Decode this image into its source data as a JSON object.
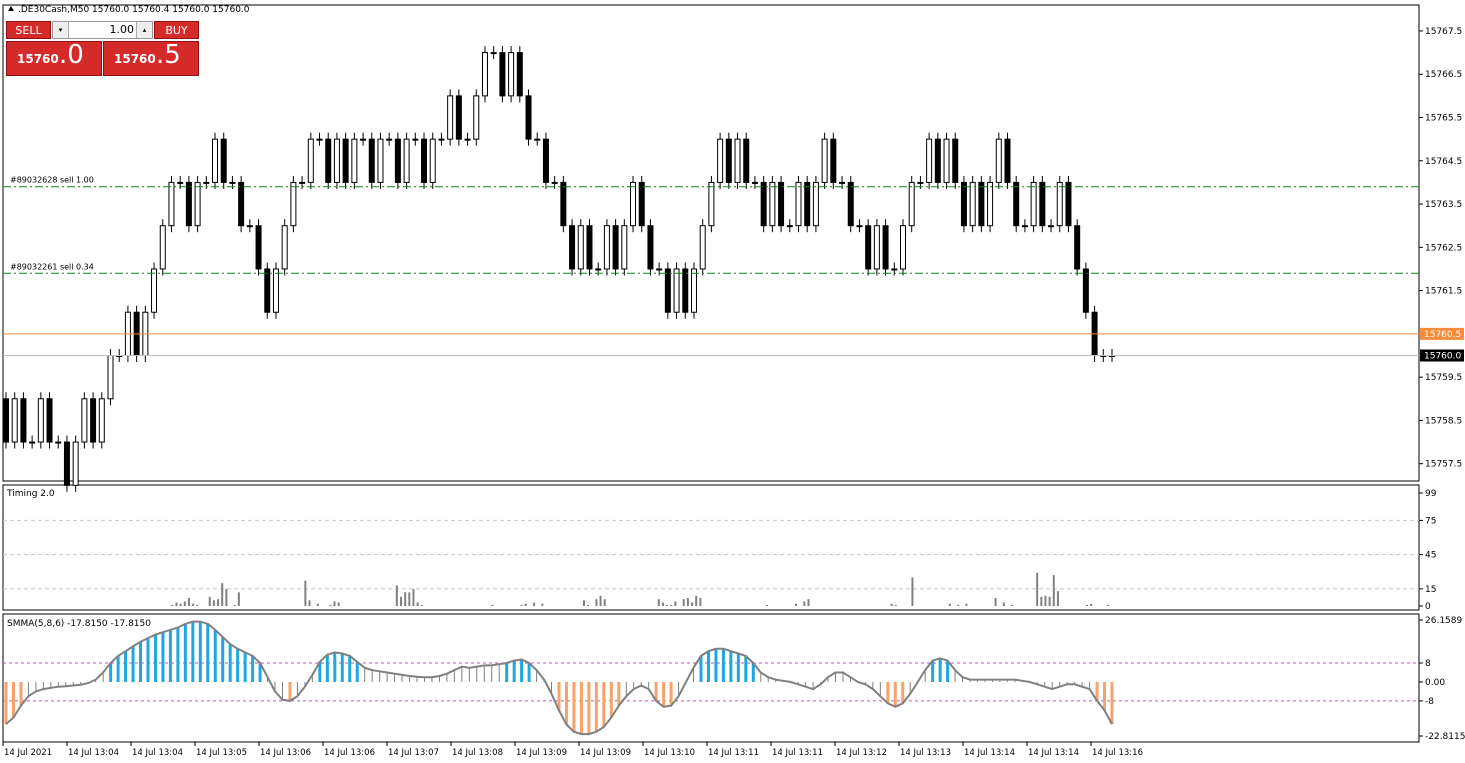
{
  "header": {
    "symbol_line": ".DE30Cash,M50  15760.0 15760.4 15760.0 15760.0"
  },
  "trade_panel": {
    "sell_label": "SELL",
    "buy_label": "BUY",
    "lot_value": "1.00",
    "lot_down": "▾",
    "lot_up": "▴",
    "sell_price_main": "15760",
    "sell_price_frac": ".0",
    "buy_price_main": "15760",
    "buy_price_frac": ".5"
  },
  "orders": [
    {
      "label": "#89032628 sell 1.00",
      "price": 15763.9
    },
    {
      "label": "#89032261 sell 0.34",
      "price": 15761.9
    }
  ],
  "price_lines": {
    "ask": 15760.5,
    "bid": 15760.0,
    "ask_label": "15760.5",
    "bid_label": "15760.0",
    "ask_color": "#f58c3c"
  },
  "colors": {
    "bull": "#ffffff",
    "bear": "#000000",
    "order_line": "#1e7a1e",
    "hist_blue": "#1ea7e1",
    "hist_orange": "#f5a36a",
    "timing_bar": "#808080",
    "smma_line": "#808080"
  },
  "chart_data": [
    {
      "type": "candlestick",
      "title": ".DE30Cash,M50",
      "y_ticks": [
        "15767.5",
        "15766.5",
        "15765.5",
        "15764.5",
        "15763.5",
        "15762.5",
        "15761.5",
        "15759.5",
        "15758.5",
        "15757.5"
      ],
      "ylim": [
        15757.1,
        15768.1
      ],
      "x_labels": [
        "14 Jul 2021",
        "14 Jul 13:04",
        "14 Jul 13:04",
        "14 Jul 13:05",
        "14 Jul 13:06",
        "14 Jul 13:06",
        "14 Jul 13:07",
        "14 Jul 13:08",
        "14 Jul 13:09",
        "14 Jul 13:09",
        "14 Jul 13:10",
        "14 Jul 13:11",
        "14 Jul 13:11",
        "14 Jul 13:12",
        "14 Jul 13:13",
        "14 Jul 13:14",
        "14 Jul 13:14",
        "14 Jul 13:16"
      ],
      "closes": [
        15758,
        15759,
        15758,
        15758,
        15759,
        15758,
        15758,
        15757,
        15758,
        15759,
        15758,
        15759,
        15760,
        15760,
        15761,
        15760,
        15761,
        15762,
        15763,
        15764,
        15764,
        15763,
        15764,
        15764,
        15765,
        15764,
        15764,
        15763,
        15763,
        15762,
        15761,
        15762,
        15763,
        15764,
        15764,
        15765,
        15765,
        15764,
        15765,
        15764,
        15765,
        15765,
        15764,
        15765,
        15765,
        15764,
        15765,
        15765,
        15764,
        15765,
        15765,
        15766,
        15765,
        15765,
        15766,
        15767,
        15767,
        15766,
        15767,
        15766,
        15765,
        15765,
        15764,
        15764,
        15763,
        15762,
        15763,
        15762,
        15762,
        15763,
        15762,
        15763,
        15764,
        15763,
        15762,
        15762,
        15761,
        15762,
        15761,
        15762,
        15763,
        15764,
        15765,
        15764,
        15765,
        15764,
        15764,
        15763,
        15764,
        15763,
        15763,
        15764,
        15763,
        15764,
        15765,
        15764,
        15764,
        15763,
        15763,
        15762,
        15763,
        15762,
        15762,
        15763,
        15764,
        15764,
        15765,
        15764,
        15765,
        15764,
        15763,
        15764,
        15763,
        15764,
        15765,
        15764,
        15763,
        15763,
        15764,
        15763,
        15763,
        15764,
        15763,
        15762,
        15761,
        15760,
        15760,
        15760
      ]
    },
    {
      "type": "bar",
      "title": "Timing 2.0",
      "y_ticks": [
        "99",
        "75",
        "45",
        "15",
        "0"
      ],
      "ylim": [
        0,
        99
      ],
      "values": [
        0,
        0,
        0,
        0,
        0,
        0,
        0,
        0,
        0,
        0,
        0,
        0,
        0,
        0,
        0,
        0,
        0,
        0,
        0,
        0,
        0,
        0,
        0,
        0,
        0,
        0,
        0,
        0,
        0,
        0,
        0,
        0,
        0,
        0,
        0,
        0,
        0,
        0,
        0,
        0,
        1,
        3,
        2,
        4,
        7,
        2,
        1,
        0,
        0,
        8,
        5,
        6,
        20,
        15,
        0,
        1,
        12,
        0,
        0,
        0,
        0,
        0,
        0,
        0,
        0,
        0,
        0,
        0,
        0,
        0,
        0,
        0,
        22,
        5,
        0,
        2,
        0,
        0,
        1,
        4,
        3,
        0,
        0,
        0,
        0,
        0,
        0,
        0,
        0,
        0,
        0,
        0,
        0,
        0,
        18,
        8,
        12,
        12,
        15,
        3,
        1,
        0,
        0,
        0,
        0,
        0,
        0,
        0,
        0,
        0,
        0,
        0,
        0,
        0,
        0,
        0,
        0,
        1,
        0,
        0,
        0,
        0,
        0,
        0,
        1,
        2,
        0,
        3,
        0,
        2,
        0,
        0,
        0,
        0,
        0,
        0,
        0,
        0,
        0,
        5,
        1,
        0,
        6,
        9,
        6,
        0,
        0,
        0,
        0,
        0,
        0,
        0,
        0,
        0,
        0,
        0,
        0,
        6,
        3,
        1,
        1,
        4,
        0,
        6,
        7,
        3,
        9,
        7,
        0,
        0,
        0,
        0,
        0,
        0,
        0,
        0,
        0,
        0,
        0,
        0,
        0,
        0,
        0,
        1,
        0,
        0,
        0,
        0,
        0,
        0,
        2,
        0,
        4,
        6,
        0,
        0,
        0,
        0,
        0,
        0,
        0,
        0,
        0,
        0,
        0,
        0,
        0,
        0,
        0,
        0,
        0,
        0,
        0,
        2,
        1,
        0,
        0,
        0,
        25,
        0,
        0,
        0,
        0,
        0,
        0,
        0,
        0,
        2,
        0,
        1,
        0,
        2,
        0,
        0,
        0,
        0,
        0,
        0,
        7,
        0,
        3,
        0,
        1,
        0,
        0,
        0,
        0,
        0,
        29,
        8,
        9,
        8,
        27,
        13,
        0,
        0,
        0,
        0,
        0,
        0,
        1,
        2,
        0,
        0,
        0,
        1,
        0
      ]
    },
    {
      "type": "area",
      "title": "SMMA(5,8,6) -17.8150 -17.8150",
      "y_ticks": [
        "26.1589",
        "8",
        "0.00",
        "-8",
        "-22.8115"
      ],
      "ylim": [
        -22.8115,
        26.1589
      ],
      "levels": [
        8,
        -8
      ],
      "values": [
        -17.8,
        -15,
        -10,
        -6,
        -4,
        -3,
        -2.5,
        -2,
        -1.8,
        -1.5,
        -1.2,
        -0.5,
        1,
        4,
        8,
        11,
        13,
        15,
        17,
        18.5,
        20,
        21,
        22,
        23,
        24.5,
        25.5,
        25.5,
        24.5,
        22,
        19,
        16,
        14,
        12.5,
        11,
        8,
        2,
        -4,
        -7.5,
        -8,
        -6,
        -2,
        3,
        8.5,
        11.5,
        12.5,
        12,
        11,
        8.5,
        6,
        5,
        4.5,
        4,
        3.5,
        3,
        2.5,
        2.2,
        2,
        2,
        2.5,
        3.5,
        5,
        6.5,
        6,
        6.5,
        7,
        7,
        7.5,
        8,
        9,
        9.5,
        8,
        5,
        1,
        -5,
        -12,
        -18,
        -21,
        -22,
        -22,
        -21,
        -19,
        -15,
        -10,
        -6,
        -3,
        -1.5,
        -3,
        -8,
        -10.5,
        -10,
        -6,
        0,
        6,
        11,
        13,
        14,
        14,
        13,
        12,
        11,
        8,
        4,
        2,
        1,
        0.5,
        0,
        -1,
        -2,
        -3,
        -1,
        2,
        4,
        4,
        2,
        0,
        -1,
        -3,
        -6,
        -9,
        -10.5,
        -9,
        -5,
        0,
        5,
        9,
        10,
        9,
        5,
        2,
        1,
        1,
        1,
        1,
        1,
        1,
        1,
        0.5,
        0,
        -1,
        -2,
        -3,
        -2,
        -1,
        -1,
        -2,
        -3,
        -8,
        -12,
        -17.8
      ],
      "colors_by_sign": "blue above 8, orange below -8, grey otherwise"
    }
  ]
}
